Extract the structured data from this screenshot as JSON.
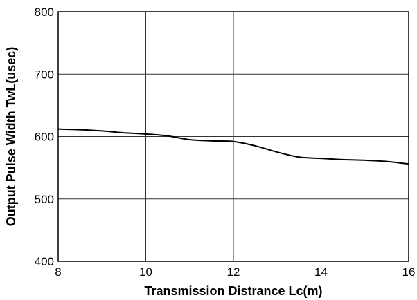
{
  "chart_data": {
    "type": "line",
    "title": "",
    "xlabel": "Transmission Distrance Lc(m)",
    "ylabel": "Output Pulse Width TwL(usec)",
    "xlim": [
      8,
      16
    ],
    "ylim": [
      400,
      800
    ],
    "xticks": [
      8,
      10,
      12,
      14,
      16
    ],
    "yticks": [
      400,
      500,
      600,
      700,
      800
    ],
    "grid": true,
    "series": [
      {
        "color": "#000000",
        "x": [
          8,
          8.5,
          9,
          9.5,
          10,
          10.5,
          11,
          11.5,
          12,
          12.5,
          13,
          13.5,
          14,
          14.5,
          15,
          15.5,
          16
        ],
        "y": [
          612,
          611,
          609,
          606,
          604,
          601,
          595,
          593,
          592,
          585,
          575,
          567,
          565,
          563,
          562,
          560,
          556
        ]
      }
    ]
  }
}
